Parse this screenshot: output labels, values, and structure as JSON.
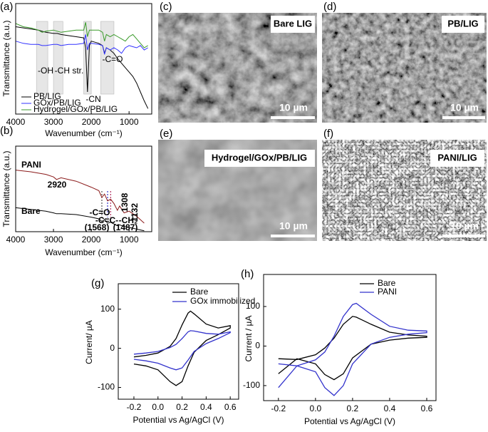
{
  "chart_data": [
    {
      "type": "line",
      "panel": "(a)",
      "xlabel": "Wavenumber (cm⁻¹)",
      "ylabel": "Transmittance (a.u.)",
      "x": [
        4000,
        3800,
        3600,
        3400,
        3300,
        3200,
        3000,
        2900,
        2800,
        2600,
        2400,
        2200,
        2150,
        2100,
        2050,
        2000,
        1800,
        1700,
        1650,
        1600,
        1500,
        1400,
        1300,
        1200,
        1100,
        1000,
        900,
        800,
        700,
        600,
        500
      ],
      "xlim": [
        4000,
        400
      ],
      "xticks": [
        4000,
        3000,
        2000,
        1000
      ],
      "ylim": [
        0,
        100
      ],
      "legend": "lower left",
      "series": [
        {
          "name": "PB/LIG",
          "color": "#000000",
          "values": [
            79,
            78,
            77,
            76,
            75,
            74,
            73,
            73,
            72,
            71,
            70,
            69,
            60,
            20,
            62,
            66,
            64,
            62,
            55,
            60,
            58,
            55,
            50,
            46,
            42,
            38,
            34,
            28,
            20,
            12,
            5
          ]
        },
        {
          "name": "GOx/PB/LIG",
          "color": "#3333ff",
          "values": [
            66,
            64,
            63,
            63,
            62,
            62,
            63,
            63,
            62,
            63,
            63,
            64,
            72,
            58,
            64,
            64,
            63,
            62,
            54,
            60,
            58,
            60,
            58,
            55,
            60,
            62,
            61,
            60,
            62,
            58,
            60
          ]
        },
        {
          "name": "Hydrogel/GOx/PB/LIG",
          "color": "#3a9a2a",
          "values": [
            82,
            79,
            78,
            76,
            74,
            75,
            76,
            75,
            74,
            75,
            76,
            76,
            83,
            70,
            76,
            76,
            76,
            74,
            66,
            72,
            70,
            72,
            70,
            68,
            66,
            70,
            72,
            68,
            64,
            60,
            62
          ]
        }
      ],
      "bands": [
        [
          3450,
          3150
        ],
        [
          3000,
          2750
        ],
        [
          2200,
          2000
        ],
        [
          1750,
          1400
        ]
      ],
      "annotations": [
        {
          "text": "-OH",
          "color": "#000000"
        },
        {
          "text": "-CH str.",
          "color": "#000000"
        },
        {
          "text": "-CN",
          "color": "#000000"
        },
        {
          "text": "-C=O",
          "color": "#000000"
        }
      ]
    },
    {
      "type": "line",
      "panel": "(b)",
      "xlabel": "Wavenumber (cm⁻¹)",
      "ylabel": "Transmittance (a.u.)",
      "x": [
        4000,
        3600,
        3200,
        3000,
        2920,
        2800,
        2400,
        2000,
        1800,
        1720,
        1650,
        1568,
        1487,
        1400,
        1308,
        1250,
        1132,
        1000,
        800,
        600
      ],
      "xlim": [
        4000,
        400
      ],
      "xticks": [
        4000,
        3000,
        2000,
        1000
      ],
      "ylim": [
        0,
        100
      ],
      "legend": "inline",
      "series": [
        {
          "name": "PANI",
          "color": "#8b1a1a",
          "values": [
            72,
            70,
            67,
            64,
            61,
            63,
            59,
            52,
            48,
            40,
            44,
            36,
            38,
            33,
            25,
            30,
            22,
            24,
            18,
            10
          ]
        },
        {
          "name": "Bare",
          "color": "#000000",
          "values": [
            28,
            26,
            24,
            22,
            21,
            21,
            20,
            17,
            15,
            12,
            14,
            10,
            11,
            9,
            7,
            8,
            6,
            5,
            3,
            1
          ]
        }
      ],
      "reference_lines": [
        {
          "x": 1720,
          "color": "#555555"
        },
        {
          "x": 1568,
          "color": "#3333cc"
        },
        {
          "x": 1487,
          "color": "#b03060"
        }
      ],
      "annotations": [
        {
          "text": "2920",
          "color": "#000000"
        },
        {
          "text": "1308",
          "color": "#8b1a1a"
        },
        {
          "text": "1132",
          "color": "#8b1a1a"
        },
        {
          "text": "-C=O",
          "color": "#000000"
        },
        {
          "text": "-C=C-",
          "color": "#3333cc"
        },
        {
          "text": "-CH₂",
          "color": "#c0182a"
        },
        {
          "text": "(1568)",
          "color": "#000000"
        },
        {
          "text": "(1487)",
          "color": "#000000"
        }
      ]
    },
    {
      "type": "line",
      "panel": "(g)",
      "xlabel": "Potential vs Ag/AgCl (V)",
      "ylabel": "Current/ µA",
      "x": [
        -0.2,
        -0.1,
        0,
        0.1,
        0.15,
        0.2,
        0.25,
        0.27,
        0.3,
        0.4,
        0.5,
        0.6,
        0.6,
        0.5,
        0.4,
        0.3,
        0.25,
        0.2,
        0.15,
        0.1,
        0,
        -0.1,
        -0.2
      ],
      "xlim": [
        -0.33,
        0.67
      ],
      "xticks": [
        -0.2,
        {
          "value": 0,
          "label": "0.0"
        },
        0.2,
        0.4,
        0.6
      ],
      "ylim": [
        -130,
        165
      ],
      "yticks": [
        -100,
        0,
        100
      ],
      "legend": "upper right",
      "series": [
        {
          "name": "Bare",
          "color": "#000000",
          "values": [
            -22,
            -18,
            -12,
            5,
            25,
            60,
            90,
            95,
            88,
            62,
            52,
            58,
            52,
            35,
            20,
            -10,
            -45,
            -85,
            -95,
            -85,
            -55,
            -45,
            -40
          ]
        },
        {
          "name": "GOx immobilized",
          "color": "#3333cc",
          "values": [
            -15,
            -12,
            -8,
            2,
            10,
            25,
            42,
            45,
            44,
            38,
            36,
            42,
            40,
            25,
            12,
            -8,
            -30,
            -50,
            -55,
            -50,
            -38,
            -32,
            -28
          ]
        }
      ]
    },
    {
      "type": "line",
      "panel": "(h)",
      "xlabel": "Potential vs Ag/AgCl (V)",
      "ylabel": "Current / µA",
      "x": [
        -0.2,
        -0.1,
        0,
        0.05,
        0.1,
        0.15,
        0.2,
        0.22,
        0.3,
        0.4,
        0.5,
        0.6,
        0.6,
        0.5,
        0.4,
        0.3,
        0.2,
        0.15,
        0.1,
        0.05,
        0,
        -0.1,
        -0.2
      ],
      "xlim": [
        -0.28,
        0.65
      ],
      "xticks": [
        -0.2,
        {
          "value": 0,
          "label": "0.0"
        },
        0.2,
        0.4,
        0.6
      ],
      "ylim": [
        -138,
        181
      ],
      "yticks": [
        -100,
        0,
        100
      ],
      "legend": "upper right",
      "series": [
        {
          "name": "Bare",
          "color": "#000000",
          "values": [
            -32,
            -34,
            -22,
            -5,
            20,
            55,
            75,
            73,
            55,
            35,
            28,
            25,
            22,
            20,
            15,
            5,
            -30,
            -70,
            -85,
            -72,
            -45,
            -32,
            -70
          ]
        },
        {
          "name": "PANI",
          "color": "#3333cc",
          "values": [
            -45,
            -50,
            -35,
            -15,
            25,
            75,
            105,
            108,
            80,
            50,
            40,
            38,
            34,
            30,
            22,
            5,
            -45,
            -100,
            -125,
            -105,
            -65,
            -50,
            -105
          ]
        }
      ]
    }
  ],
  "images": [
    {
      "panel": "(c)",
      "label": "Bare LIG",
      "scale_bar": "10 µm"
    },
    {
      "panel": "(d)",
      "label": "PB/LIG",
      "scale_bar": "10 µm"
    },
    {
      "panel": "(e)",
      "label": "Hydrogel/GOx/PB/LIG",
      "scale_bar": "10 µm"
    },
    {
      "panel": "(f)",
      "label": "PANI/LIG",
      "scale_bar": "10 µm"
    }
  ]
}
